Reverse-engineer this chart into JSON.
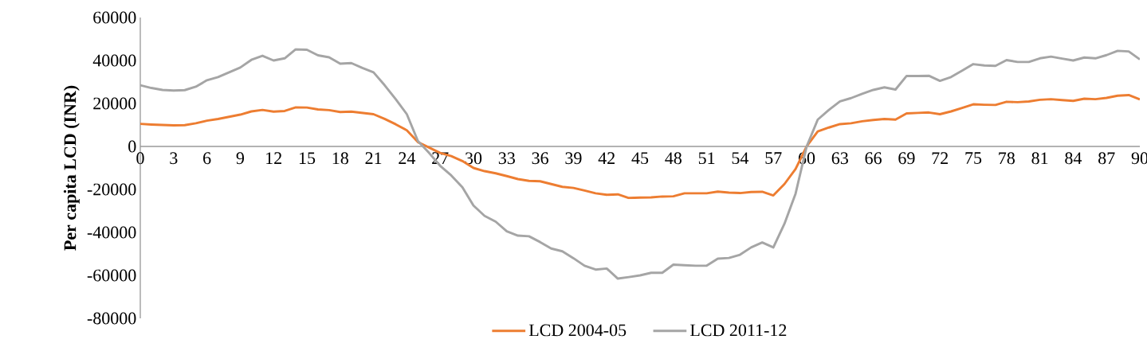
{
  "chart_data": {
    "type": "line",
    "ylabel": "Per capita LCD (INR)",
    "x": [
      0,
      1,
      2,
      3,
      4,
      5,
      6,
      7,
      8,
      9,
      10,
      11,
      12,
      13,
      14,
      15,
      16,
      17,
      18,
      19,
      20,
      21,
      22,
      23,
      24,
      25,
      26,
      27,
      28,
      29,
      30,
      31,
      32,
      33,
      34,
      35,
      36,
      37,
      38,
      39,
      40,
      41,
      42,
      43,
      44,
      45,
      46,
      47,
      48,
      49,
      50,
      51,
      52,
      53,
      54,
      55,
      56,
      57,
      58,
      59,
      60,
      61,
      62,
      63,
      64,
      65,
      66,
      67,
      68,
      69,
      70,
      71,
      72,
      73,
      74,
      75,
      76,
      77,
      78,
      79,
      80,
      81,
      82,
      83,
      84,
      85,
      86,
      87,
      88,
      89,
      90
    ],
    "series": [
      {
        "name": "LCD 2004-05",
        "color": "#ed7d31",
        "values": [
          10500,
          10200,
          10000,
          9800,
          9900,
          10800,
          12000,
          12800,
          13800,
          14800,
          16300,
          17000,
          16200,
          16500,
          18200,
          18100,
          17200,
          16900,
          16000,
          16200,
          15600,
          15000,
          12800,
          10300,
          7500,
          2000,
          -500,
          -3000,
          -4500,
          -6800,
          -10000,
          -11500,
          -12500,
          -13800,
          -15200,
          -16000,
          -16200,
          -17500,
          -18800,
          -19300,
          -20500,
          -21800,
          -22500,
          -22300,
          -24000,
          -23800,
          -23700,
          -23300,
          -23200,
          -21800,
          -21800,
          -21800,
          -21000,
          -21500,
          -21700,
          -21200,
          -21100,
          -22800,
          -17500,
          -10500,
          0,
          7000,
          8800,
          10400,
          10800,
          11700,
          12300,
          12800,
          12500,
          15400,
          15600,
          15800,
          15000,
          16300,
          17900,
          19600,
          19400,
          19300,
          20800,
          20600,
          20900,
          21700,
          22000,
          21600,
          21200,
          22200,
          22000,
          22600,
          23600,
          23900,
          21900
        ]
      },
      {
        "name": "LCD 2011-12",
        "color": "#a5a5a5",
        "values": [
          28500,
          27200,
          26300,
          26000,
          26200,
          27800,
          30800,
          32300,
          34500,
          36700,
          40300,
          42200,
          40000,
          41000,
          45200,
          45000,
          42400,
          41500,
          38500,
          38800,
          36500,
          34500,
          28500,
          22000,
          15000,
          2500,
          -3000,
          -9000,
          -13500,
          -19000,
          -27500,
          -32300,
          -35000,
          -39500,
          -41500,
          -41800,
          -44500,
          -47500,
          -48800,
          -52000,
          -55500,
          -57300,
          -56800,
          -61500,
          -60800,
          -60000,
          -58800,
          -58800,
          -55000,
          -55300,
          -55500,
          -55500,
          -52200,
          -51900,
          -50400,
          -47000,
          -44700,
          -47000,
          -36000,
          -22000,
          0,
          12500,
          17000,
          21000,
          22500,
          24500,
          26300,
          27500,
          26500,
          32800,
          32800,
          32900,
          30500,
          32300,
          35300,
          38300,
          37700,
          37500,
          40200,
          39300,
          39300,
          41000,
          41800,
          40900,
          40000,
          41400,
          41000,
          42500,
          44500,
          44200,
          40500
        ]
      }
    ],
    "xlim": [
      0,
      90
    ],
    "xticks": [
      0,
      3,
      6,
      9,
      12,
      15,
      18,
      21,
      24,
      27,
      30,
      33,
      36,
      39,
      42,
      45,
      48,
      51,
      54,
      57,
      60,
      63,
      66,
      69,
      72,
      75,
      78,
      81,
      84,
      87,
      90
    ],
    "ylim": [
      -80000,
      60000
    ],
    "yticks": [
      -80000,
      -60000,
      -40000,
      -20000,
      0,
      20000,
      40000,
      60000
    ],
    "grid": false,
    "legend": "bottom",
    "marker": "none",
    "line_style": "solid"
  }
}
